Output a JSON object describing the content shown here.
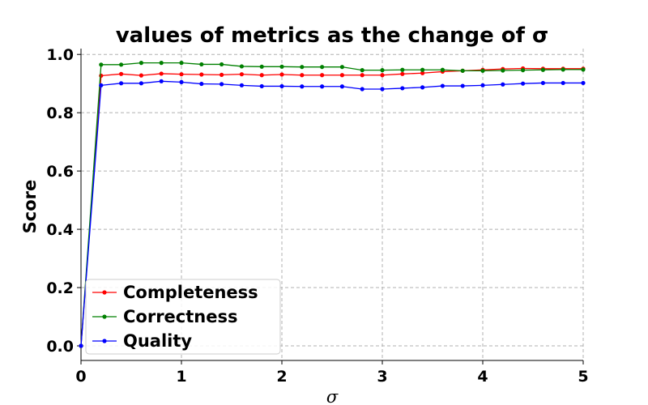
{
  "chart_data": {
    "type": "line",
    "title": "values of metrics as the change of σ",
    "xlabel": "σ",
    "ylabel": "Score",
    "xlim": [
      0,
      5
    ],
    "ylim": [
      -0.05,
      1.02
    ],
    "xticks": [
      0,
      1,
      2,
      3,
      4,
      5
    ],
    "xtick_labels": [
      "0",
      "1",
      "2",
      "3",
      "4",
      "5"
    ],
    "yticks": [
      0.0,
      0.2,
      0.4,
      0.6,
      0.8,
      1.0
    ],
    "ytick_labels": [
      "0.0",
      "0.2",
      "0.4",
      "0.6",
      "0.8",
      "1.0"
    ],
    "grid": true,
    "legend_position": "lower-left",
    "x": [
      0,
      0.2,
      0.4,
      0.6,
      0.8,
      1.0,
      1.2,
      1.4,
      1.6,
      1.8,
      2.0,
      2.2,
      2.4,
      2.6,
      2.8,
      3.0,
      3.2,
      3.4,
      3.6,
      3.8,
      4.0,
      4.2,
      4.4,
      4.6,
      4.8,
      5.0
    ],
    "series": [
      {
        "name": "Completeness",
        "color": "#ff0000",
        "values": [
          0.0,
          0.927,
          0.933,
          0.928,
          0.934,
          0.932,
          0.931,
          0.93,
          0.932,
          0.929,
          0.931,
          0.929,
          0.929,
          0.929,
          0.929,
          0.929,
          0.933,
          0.936,
          0.941,
          0.944,
          0.947,
          0.95,
          0.952,
          0.951,
          0.951,
          0.951
        ]
      },
      {
        "name": "Correctness",
        "color": "#008000",
        "values": [
          0.0,
          0.965,
          0.965,
          0.971,
          0.971,
          0.971,
          0.966,
          0.966,
          0.959,
          0.958,
          0.958,
          0.957,
          0.957,
          0.957,
          0.946,
          0.946,
          0.947,
          0.947,
          0.947,
          0.944,
          0.944,
          0.945,
          0.946,
          0.947,
          0.948,
          0.948
        ]
      },
      {
        "name": "Quality",
        "color": "#0000ff",
        "values": [
          0.0,
          0.894,
          0.901,
          0.901,
          0.908,
          0.905,
          0.899,
          0.898,
          0.894,
          0.891,
          0.891,
          0.89,
          0.89,
          0.89,
          0.881,
          0.881,
          0.884,
          0.887,
          0.892,
          0.892,
          0.894,
          0.897,
          0.9,
          0.902,
          0.902,
          0.902
        ]
      }
    ]
  }
}
